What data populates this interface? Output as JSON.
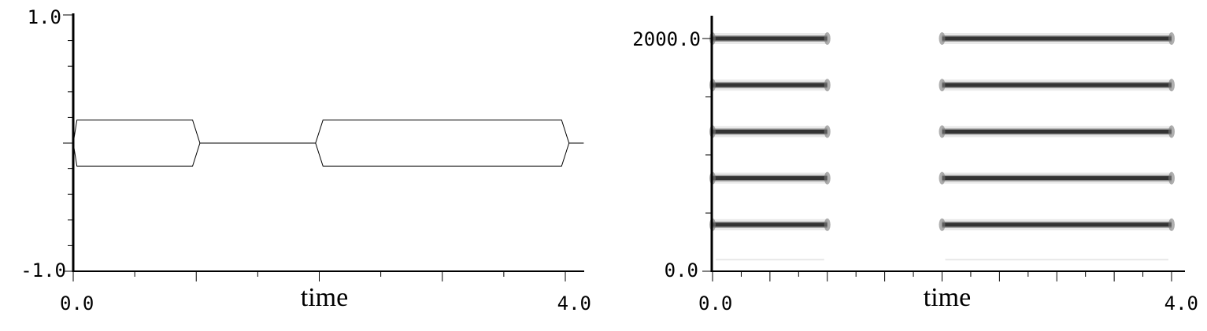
{
  "chart_data": [
    {
      "type": "line",
      "title": "",
      "xlabel": "time",
      "ylabel": "",
      "xlim": [
        0.0,
        4.0
      ],
      "ylim": [
        -1.0,
        1.0
      ],
      "x_tick_labels": [
        "0.0",
        "4.0"
      ],
      "y_tick_labels": [
        "1.0",
        "-1.0"
      ],
      "grid": false,
      "series": [
        {
          "points": [
            [
              0.0,
              0.0
            ],
            [
              0.03,
              0.18
            ],
            [
              0.97,
              0.18
            ],
            [
              1.03,
              0.0
            ],
            [
              1.97,
              0.0
            ],
            [
              2.03,
              0.18
            ],
            [
              3.97,
              0.18
            ],
            [
              4.03,
              0.0
            ],
            [
              4.15,
              0.0
            ]
          ],
          "mirror_points": [
            [
              0.0,
              0.0
            ],
            [
              0.03,
              -0.18
            ],
            [
              0.97,
              -0.18
            ],
            [
              1.03,
              0.0
            ],
            [
              1.97,
              0.0
            ],
            [
              2.03,
              -0.18
            ],
            [
              3.97,
              -0.18
            ],
            [
              4.03,
              0.0
            ]
          ]
        }
      ]
    },
    {
      "type": "heatmap",
      "title": "",
      "xlabel": "time",
      "ylabel": "",
      "xlim": [
        0.0,
        4.0
      ],
      "ylim": [
        0.0,
        2000.0
      ],
      "x_tick_labels": [
        "0.0",
        "4.0"
      ],
      "y_tick_labels": [
        "2000.0",
        "0.0"
      ],
      "grid": false,
      "segments_x": [
        [
          0.0,
          1.0
        ],
        [
          2.0,
          4.0
        ]
      ],
      "bands_y": [
        400,
        800,
        1200,
        1600,
        2000
      ],
      "faint_band_y": 100
    }
  ]
}
